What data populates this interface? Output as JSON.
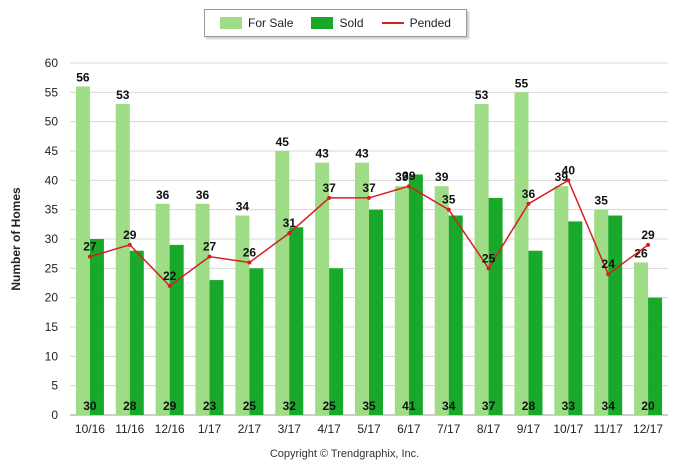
{
  "chart_data": {
    "type": "bar",
    "categories": [
      "10/16",
      "11/16",
      "12/16",
      "1/17",
      "2/17",
      "3/17",
      "4/17",
      "5/17",
      "6/17",
      "7/17",
      "8/17",
      "9/17",
      "10/17",
      "11/17",
      "12/17"
    ],
    "series": [
      {
        "name": "For Sale",
        "kind": "bar",
        "color": "#9fdc86",
        "values": [
          56,
          53,
          36,
          36,
          34,
          45,
          43,
          43,
          39,
          39,
          53,
          55,
          39,
          35,
          26
        ]
      },
      {
        "name": "Sold",
        "kind": "bar",
        "color": "#18a82a",
        "values": [
          30,
          28,
          29,
          23,
          25,
          32,
          25,
          35,
          41,
          34,
          37,
          28,
          33,
          34,
          20
        ]
      },
      {
        "name": "Pended",
        "kind": "line",
        "color": "#d42020",
        "values": [
          27,
          29,
          22,
          27,
          26,
          31,
          37,
          37,
          39,
          35,
          25,
          36,
          40,
          24,
          29
        ]
      }
    ],
    "title": "",
    "xlabel": "",
    "ylabel": "Number of Homes",
    "ylim": [
      0,
      60
    ],
    "yticks": [
      0,
      5,
      10,
      15,
      20,
      25,
      30,
      35,
      40,
      45,
      50,
      55,
      60
    ],
    "grid": true,
    "legend_position": "top-center"
  },
  "footer": {
    "copyright": "Copyright © Trendgraphix, Inc."
  }
}
